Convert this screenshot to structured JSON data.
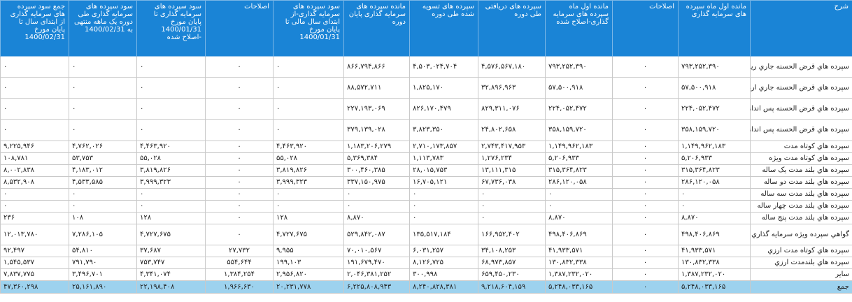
{
  "headers": [
    "شرح",
    "مانده اول ماه سپرده های سرمایه گذاری",
    "اصلاحات",
    "مانده اول ماه سپرده های سرمایه گذاری-اصلاح شده",
    "سپرده های دریافتی طی دوره",
    "سپرده های تسویه شده طی دوره",
    "مانده سپرده های سرمایه گذاری پایان دوره",
    "سود سپرده های سرمایه گذاری-از ابتدای سال مالی تا پایان مورخ 1400/01/31",
    "اصلاحات",
    "سود سپرده های سرمایه گذاری تا پایان مورخ 1400/01/31 -اصلاح شده",
    "سود سپرده های سرمایه گذاری طی دوره یک ماهه منتهی به 1400/02/31",
    "جمع سود سپرده های سرمایه گذاری از ابتدای سال تا پایان مورخ 1400/02/31"
  ],
  "rows": [
    [
      "سپرده هاي قرض الحسنه جاري ريالي",
      "۷۹۳,۲۵۲,۳۹۰",
      "۰",
      "۷۹۳,۲۵۲,۳۹۰",
      "۴,۵۷۶,۵۶۷,۱۸۰",
      "۴,۵۰۳,۰۲۴,۷۰۴",
      "۸۶۶,۷۹۴,۸۶۶",
      "۰",
      "۰",
      "۰",
      "۰",
      "۰"
    ],
    [
      "سپرده هاي قرض الحسنه جاري ارزي",
      "۵۷,۵۰۰,۹۱۸",
      "۰",
      "۵۷,۵۰۰,۹۱۸",
      "۳۲,۸۹۶,۹۶۳",
      "۱,۸۲۵,۱۷۰",
      "۸۸,۵۷۲,۷۱۱",
      "۰",
      "۰",
      "۰",
      "۰",
      "۰"
    ],
    [
      "سپرده هاي قرض الحسنه پس انداز ريالي",
      "۲۲۴,۰۵۲,۴۷۲",
      "۰",
      "۲۲۴,۰۵۲,۴۷۲",
      "۸۲۹,۳۱۱,۰۷۶",
      "۸۲۶,۱۷۰,۴۷۹",
      "۲۲۷,۱۹۳,۰۶۹",
      "۰",
      "۰",
      "۰",
      "۰",
      "۰"
    ],
    [
      "سپرده هاي قرض الحسنه پس انداز ارزي",
      "۳۵۸,۱۵۹,۷۲۰",
      "۰",
      "۳۵۸,۱۵۹,۷۲۰",
      "۲۴,۸۰۲,۶۵۸",
      "۳,۸۲۳,۳۵۰",
      "۳۷۹,۱۳۹,۰۲۸",
      "۰",
      "۰",
      "۰",
      "۰",
      "۰"
    ],
    [
      "سپرده هاي کوتاه مدت",
      "۱,۱۴۹,۹۶۲,۱۸۳",
      "۰",
      "۱,۱۴۹,۹۶۲,۱۸۳",
      "۲,۷۴۳,۴۱۷,۹۵۳",
      "۲,۷۱۰,۱۷۳,۸۵۷",
      "۱,۱۸۳,۲۰۶,۲۷۹",
      "۴,۴۶۳,۹۲۰",
      "۰",
      "۴,۴۶۳,۹۲۰",
      "۴,۷۶۲,۰۲۶",
      "۹,۲۲۵,۹۴۶"
    ],
    [
      "سپرده هاي کوتاه مدت ويژه",
      "۵,۲۰۶,۹۳۳",
      "۰",
      "۵,۲۰۶,۹۳۳",
      "۱,۲۷۶,۲۳۴",
      "۱,۱۱۳,۷۸۳",
      "۵,۳۶۹,۳۸۴",
      "۵۵,۰۲۸",
      "۰",
      "۵۵,۰۲۸",
      "۵۳,۷۵۳",
      "۱۰۸,۷۸۱"
    ],
    [
      "سپرده هاي بلند مدت يک ساله",
      "۳۱۵,۳۶۴,۸۲۳",
      "۰",
      "۳۱۵,۳۶۴,۸۲۳",
      "۱۳,۱۱۱,۳۱۵",
      "۲۸,۰۱۵,۷۵۳",
      "۳۰۰,۴۶۰,۳۸۵",
      "۳,۸۱۹,۸۲۶",
      "۰",
      "۳,۸۱۹,۸۲۶",
      "۴,۱۸۳,۰۱۲",
      "۸,۰۰۲,۸۳۸"
    ],
    [
      "سپرده هاي بلند مدت دو ساله",
      "۲۸۶,۱۲۰,۰۵۸",
      "۰",
      "۲۸۶,۱۲۰,۰۵۸",
      "۶۷,۷۳۶,۰۳۸",
      "۱۶,۷۰۵,۱۲۱",
      "۳۳۷,۱۵۰,۹۷۵",
      "۳,۹۹۹,۳۲۳",
      "۰",
      "۳,۹۹۹,۳۲۳",
      "۴,۵۳۳,۵۸۵",
      "۸,۵۳۲,۹۰۸"
    ],
    [
      "سپرده هاي بلند مدت سه ساله",
      "۰",
      "۰",
      "۰",
      "۰",
      "۰",
      "۰",
      "۰",
      "۰",
      "۰",
      "۰",
      "۰"
    ],
    [
      "سپرده هاي بلند مدت چهار ساله",
      "۰",
      "۰",
      "۰",
      "۰",
      "۰",
      "۰",
      "۰",
      "۰",
      "۰",
      "۰",
      "۰"
    ],
    [
      "سپرده هاي بلند مدت پنج ساله",
      "۸,۸۷۰",
      "۰",
      "۸,۸۷۰",
      "۰",
      "۰",
      "۸,۸۷۰",
      "۱۲۸",
      "۰",
      "۱۲۸",
      "۱۰۸",
      "۲۳۶"
    ],
    [
      "گواهي سپرده ويژه سرمايه گذاري عام",
      "۴۹۸,۴۰۶,۸۶۹",
      "۰",
      "۴۹۸,۴۰۶,۸۶۹",
      "۱۶۶,۹۵۲,۴۰۲",
      "۱۳۵,۵۱۷,۱۸۴",
      "۵۲۹,۸۴۲,۰۸۷",
      "۴,۷۲۷,۶۷۵",
      "۰",
      "۴,۷۲۷,۶۷۵",
      "۷,۲۸۶,۱۰۵",
      "۱۲,۰۱۳,۷۸۰"
    ],
    [
      "سپرده هاي کوتاه مدت ارزي",
      "۴۱,۹۳۳,۵۷۱",
      "۰",
      "۴۱,۹۳۳,۵۷۱",
      "۳۴,۱۰۸,۲۵۳",
      "۶,۰۳۱,۲۵۷",
      "۷۰,۰۱۰,۵۶۷",
      "۹,۹۵۵",
      "۲۷,۷۳۲",
      "۳۷,۶۸۷",
      "۵۴,۸۱۰",
      "۹۲,۴۹۷"
    ],
    [
      "سپرده هاي بلندمدت ارزي",
      "۱۳۰,۸۳۲,۳۳۸",
      "۰",
      "۱۳۰,۸۳۲,۳۳۸",
      "۶۸,۹۷۳,۸۵۷",
      "۸,۱۲۶,۷۲۵",
      "۱۹۱,۶۷۹,۴۷۰",
      "۱۹۹,۱۰۳",
      "۵۵۴,۶۴۴",
      "۷۵۳,۷۴۷",
      "۷۹۱,۷۹۰",
      "۱,۵۴۵,۵۳۷"
    ],
    [
      "ساير",
      "۱,۳۸۷,۲۳۲,۰۲۰",
      "۰",
      "۱,۳۸۷,۲۳۲,۰۲۰",
      "۶۵۹,۴۵۰,۲۳۰",
      "۳۰۰,۹۹۸",
      "۲,۰۴۶,۳۸۱,۲۵۲",
      "۲,۹۵۶,۸۲۰",
      "۱,۳۸۴,۲۵۴",
      "۴,۳۴۱,۰۷۴",
      "۳,۴۹۶,۷۰۱",
      "۷,۸۳۷,۷۷۵"
    ]
  ],
  "total": [
    "جمع",
    "۵,۲۴۸,۰۳۳,۱۶۵",
    "۰",
    "۵,۲۴۸,۰۳۳,۱۶۵",
    "۹,۲۱۸,۶۰۴,۱۵۹",
    "۸,۲۴۰,۸۲۸,۳۸۱",
    "۶,۲۲۵,۸۰۸,۹۴۳",
    "۲۰,۲۳۱,۷۷۸",
    "۱,۹۶۶,۶۳۰",
    "۲۲,۱۹۸,۴۰۸",
    "۲۵,۱۶۱,۸۹۰",
    "۴۷,۳۶۰,۲۹۸"
  ],
  "colors": {
    "header_bg": "#1a84d6",
    "total_bg": "#9dd2ee"
  }
}
